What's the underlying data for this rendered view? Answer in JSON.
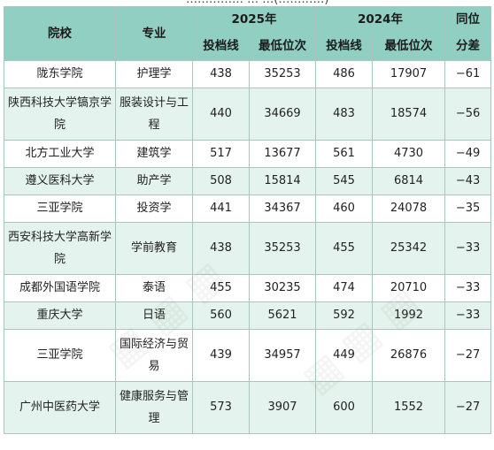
{
  "cropped_header_text": "…………… … …(…………)",
  "headers": {
    "school": "院校",
    "major": "专业",
    "year_2025": "2025年",
    "year_2024": "2024年",
    "rank_diff_line1": "同位",
    "rank_diff_line2": "分差",
    "cutoff": "投档线",
    "min_rank": "最低位次"
  },
  "rows": [
    {
      "school": "陇东学院",
      "major": "护理学",
      "cut_2025": "438",
      "rank_2025": "35253",
      "cut_2024": "486",
      "rank_2024": "17907",
      "diff": "−61"
    },
    {
      "school": "陕西科技大学镐京学院",
      "major": "服装设计与工程",
      "cut_2025": "440",
      "rank_2025": "34669",
      "cut_2024": "483",
      "rank_2024": "18574",
      "diff": "−56"
    },
    {
      "school": "北方工业大学",
      "major": "建筑学",
      "cut_2025": "517",
      "rank_2025": "13677",
      "cut_2024": "561",
      "rank_2024": "4730",
      "diff": "−49"
    },
    {
      "school": "遵义医科大学",
      "major": "助产学",
      "cut_2025": "508",
      "rank_2025": "15814",
      "cut_2024": "545",
      "rank_2024": "6814",
      "diff": "−43"
    },
    {
      "school": "三亚学院",
      "major": "投资学",
      "cut_2025": "441",
      "rank_2025": "34367",
      "cut_2024": "460",
      "rank_2024": "24078",
      "diff": "−35"
    },
    {
      "school": "西安科技大学高新学院",
      "major": "学前教育",
      "cut_2025": "438",
      "rank_2025": "35253",
      "cut_2024": "455",
      "rank_2024": "25342",
      "diff": "−33"
    },
    {
      "school": "成都外国语学院",
      "major": "泰语",
      "cut_2025": "455",
      "rank_2025": "30235",
      "cut_2024": "474",
      "rank_2024": "20710",
      "diff": "−33"
    },
    {
      "school": "重庆大学",
      "major": "日语",
      "cut_2025": "560",
      "rank_2025": "5621",
      "cut_2024": "592",
      "rank_2024": "1992",
      "diff": "−33"
    },
    {
      "school": "三亚学院",
      "major": "国际经济与贸易",
      "cut_2025": "439",
      "rank_2025": "34957",
      "cut_2024": "449",
      "rank_2024": "26876",
      "diff": "−27"
    },
    {
      "school": "广州中医药大学",
      "major": "健康服务与管理",
      "cut_2025": "573",
      "rank_2025": "3907",
      "cut_2024": "600",
      "rank_2024": "1552",
      "diff": "−27"
    }
  ]
}
